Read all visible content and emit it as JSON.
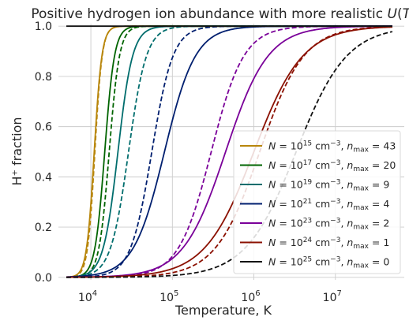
{
  "chart_data": {
    "type": "line",
    "title": "Positive hydrogen ion abundance with more realistic U(T)",
    "xlabel": "Temperature, K",
    "ylabel": "H⁺ fraction",
    "xscale": "log",
    "xlim": [
      4000,
      70000000
    ],
    "ylim": [
      -0.01,
      1.01
    ],
    "x_ticks": [
      {
        "value": 10000,
        "base": "10",
        "exp": "4"
      },
      {
        "value": 100000,
        "base": "10",
        "exp": "5"
      },
      {
        "value": 1000000,
        "base": "10",
        "exp": "6"
      },
      {
        "value": 10000000,
        "base": "10",
        "exp": "7"
      }
    ],
    "y_ticks": [
      {
        "value": 0.0,
        "label": "0.0"
      },
      {
        "value": 0.2,
        "label": "0.2"
      },
      {
        "value": 0.4,
        "label": "0.4"
      },
      {
        "value": 0.6,
        "label": "0.6"
      },
      {
        "value": 0.8,
        "label": "0.8"
      },
      {
        "value": 1.0,
        "label": "1.0"
      }
    ],
    "grid": true,
    "legend_position": "lower-right",
    "x_range": [
      5000,
      50000000
    ],
    "series": [
      {
        "name": "N = 10^15 cm^-3, n_max = 43",
        "N_exp": "15",
        "nmax": "43",
        "color": "#b8860b",
        "solid_mid_T": 11000,
        "solid_width_dex": 0.047,
        "dashed_mid_T": 11200,
        "dashed_width_dex": 0.045
      },
      {
        "name": "N = 10^17 cm^-3, n_max = 20",
        "N_exp": "17",
        "nmax": "20",
        "color": "#006400",
        "solid_mid_T": 14800,
        "solid_width_dex": 0.06,
        "dashed_mid_T": 16800,
        "dashed_width_dex": 0.063
      },
      {
        "name": "N = 10^19 cm^-3, n_max = 9",
        "N_exp": "19",
        "nmax": "9",
        "color": "#006d6d",
        "solid_mid_T": 21500,
        "solid_width_dex": 0.09,
        "dashed_mid_T": 29000,
        "dashed_width_dex": 0.11
      },
      {
        "name": "N = 10^21 cm^-3, n_max = 4",
        "N_exp": "21",
        "nmax": "4",
        "color": "#001f6f",
        "solid_mid_T": 80000,
        "solid_width_dex": 0.19,
        "dashed_mid_T": 56000,
        "dashed_width_dex": 0.13
      },
      {
        "name": "N = 10^23 cm^-3, n_max = 2",
        "N_exp": "23",
        "nmax": "2",
        "color": "#7a0099",
        "solid_mid_T": 450000,
        "solid_width_dex": 0.26,
        "dashed_mid_T": 300000,
        "dashed_width_dex": 0.2
      },
      {
        "name": "N = 10^24 cm^-3, n_max = 1",
        "N_exp": "24",
        "nmax": "1",
        "color": "#8b1000",
        "solid_mid_T": 1000000,
        "solid_width_dex": 0.3,
        "dashed_mid_T": 1180000,
        "dashed_width_dex": 0.27
      },
      {
        "name": "N = 10^25 cm^-3, n_max = 0",
        "N_exp": "25",
        "nmax": "0",
        "color": "#111111",
        "solid_mid_T": 40,
        "solid_width_dex": 0.05,
        "dashed_mid_T": 3300000,
        "dashed_width_dex": 0.31
      }
    ]
  }
}
